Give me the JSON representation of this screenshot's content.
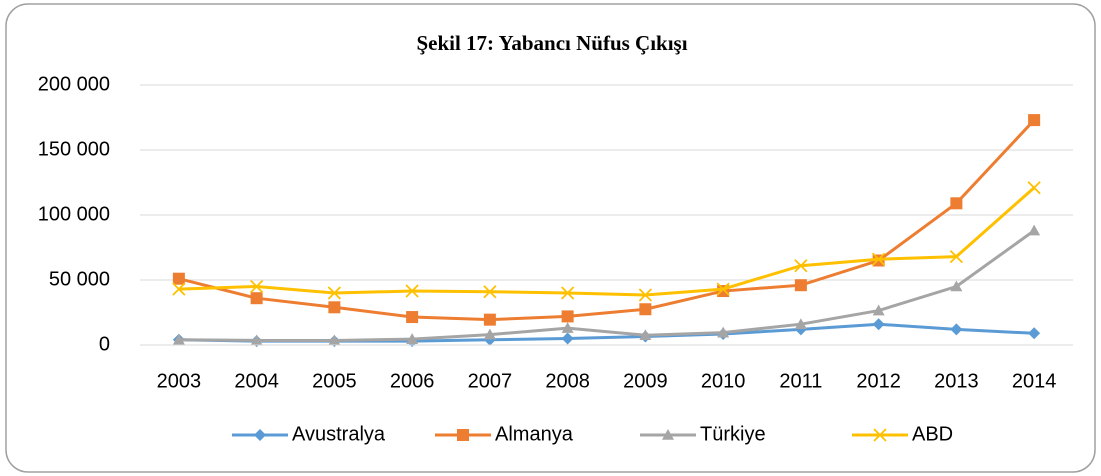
{
  "chart_data": {
    "type": "line",
    "title": "Şekil 17: Yabancı Nüfus Çıkışı",
    "categories": [
      "2003",
      "2004",
      "2005",
      "2006",
      "2007",
      "2008",
      "2009",
      "2010",
      "2011",
      "2012",
      "2013",
      "2014"
    ],
    "series": [
      {
        "name": "Avustralya",
        "color": "#5b9bd5",
        "marker": "diamond",
        "values": [
          4000,
          3000,
          3000,
          3000,
          4000,
          5000,
          6500,
          8500,
          12000,
          16000,
          12000,
          9000
        ]
      },
      {
        "name": "Almanya",
        "color": "#ed7d31",
        "marker": "square",
        "values": [
          51000,
          36000,
          29000,
          21500,
          19500,
          22000,
          27500,
          41500,
          46000,
          65000,
          109000,
          173000
        ]
      },
      {
        "name": "Türkiye",
        "color": "#a5a5a5",
        "marker": "triangle",
        "values": [
          4000,
          3500,
          3500,
          4500,
          8000,
          13000,
          7500,
          9500,
          16000,
          26500,
          45000,
          88000
        ]
      },
      {
        "name": "ABD",
        "color": "#ffc000",
        "marker": "x",
        "values": [
          43000,
          45000,
          40000,
          41500,
          41000,
          40000,
          38500,
          43000,
          61000,
          66000,
          68000,
          121000
        ]
      }
    ],
    "ylim": [
      0,
      200000
    ],
    "yticks": [
      0,
      {
        "value": 50000,
        "label": "50 000"
      },
      {
        "value": 100000,
        "label": "100 000"
      },
      {
        "value": 150000,
        "label": "150 000"
      },
      {
        "value": 200000,
        "label": "200 000"
      }
    ],
    "grid": true,
    "legend": "bottom"
  }
}
